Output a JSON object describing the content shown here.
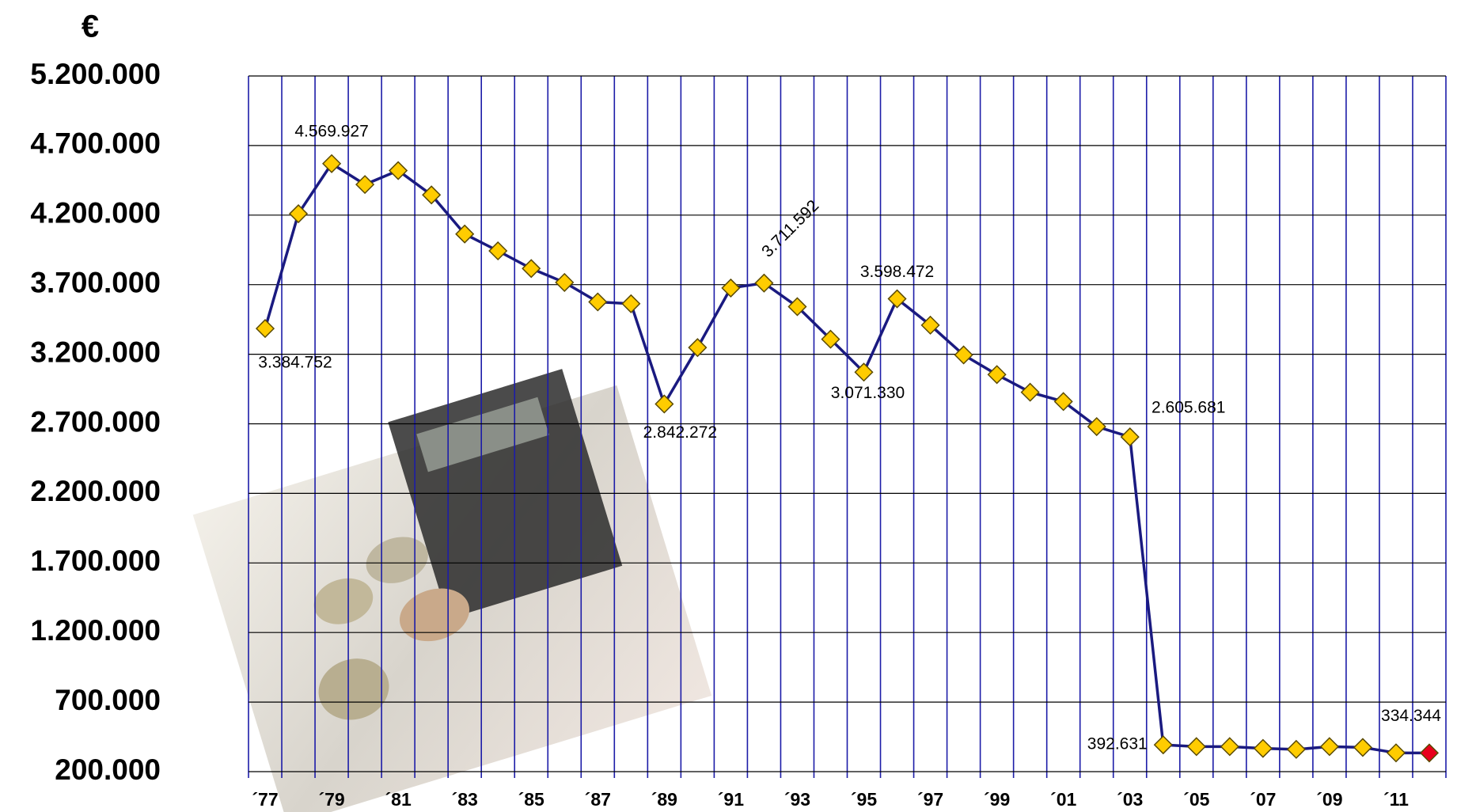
{
  "chart_data": {
    "type": "line",
    "y_unit": "€",
    "categories": [
      "´77",
      null,
      "´79",
      null,
      "´81",
      null,
      "´83",
      null,
      "´85",
      null,
      "´87",
      null,
      "´89",
      null,
      "´91",
      null,
      "´93",
      null,
      "´95",
      null,
      "´97",
      null,
      "´99",
      null,
      "´01",
      null,
      "´03",
      null,
      "´05",
      null,
      "´07",
      null,
      "´09",
      null,
      "´11",
      null
    ],
    "series": [
      {
        "color": "#1a1a80",
        "marker_colors": [
          "#ffcc00",
          "#ffcc00",
          "#ffcc00",
          "#ffcc00",
          "#ffcc00",
          "#ffcc00",
          "#ffcc00",
          "#ffcc00",
          "#ffcc00",
          "#ffcc00",
          "#ffcc00",
          "#ffcc00",
          "#ffcc00",
          "#ffcc00",
          "#ffcc00",
          "#ffcc00",
          "#ffcc00",
          "#ffcc00",
          "#ffcc00",
          "#ffcc00",
          "#ffcc00",
          "#ffcc00",
          "#ffcc00",
          "#ffcc00",
          "#ffcc00",
          "#ffcc00",
          "#ffcc00",
          "#ffcc00",
          "#ffcc00",
          "#ffcc00",
          "#ffcc00",
          "#ffcc00",
          "#ffcc00",
          "#ffcc00",
          "#ffcc00",
          "#e8001c"
        ],
        "values": [
          3384752,
          4210000,
          4569927,
          4420000,
          4520000,
          4345000,
          4064000,
          3943000,
          3816000,
          3716000,
          3576000,
          3563000,
          2842272,
          3248000,
          3676000,
          3711592,
          3542000,
          3308000,
          3071330,
          3598472,
          3409000,
          3195000,
          3054000,
          2927000,
          2860000,
          2680000,
          2605681,
          392631,
          380000,
          380000,
          367000,
          360000,
          380000,
          374000,
          335000,
          334344
        ],
        "value_labels": [
          "3.384.752",
          null,
          "4.569.927",
          null,
          null,
          null,
          null,
          null,
          null,
          null,
          null,
          null,
          "2.842.272",
          null,
          null,
          "3.711.592",
          null,
          null,
          "3.071.330",
          "3.598.472",
          null,
          null,
          null,
          null,
          null,
          null,
          "2.605.681",
          "392.631",
          null,
          null,
          null,
          null,
          null,
          null,
          null,
          "334.344"
        ]
      }
    ],
    "ylim": [
      200000,
      5200000
    ],
    "yticks": [
      {
        "value": 200000,
        "label": "200.000"
      },
      {
        "value": 700000,
        "label": "700.000"
      },
      {
        "value": 1200000,
        "label": "1.200.000"
      },
      {
        "value": 1700000,
        "label": "1.700.000"
      },
      {
        "value": 2200000,
        "label": "2.200.000"
      },
      {
        "value": 2700000,
        "label": "2.700.000"
      },
      {
        "value": 3200000,
        "label": "3.200.000"
      },
      {
        "value": 3700000,
        "label": "3.700.000"
      },
      {
        "value": 4200000,
        "label": "4.200.000"
      },
      {
        "value": 4700000,
        "label": "4.700.000"
      },
      {
        "value": 5200000,
        "label": "5.200.000"
      }
    ],
    "grid": true
  }
}
